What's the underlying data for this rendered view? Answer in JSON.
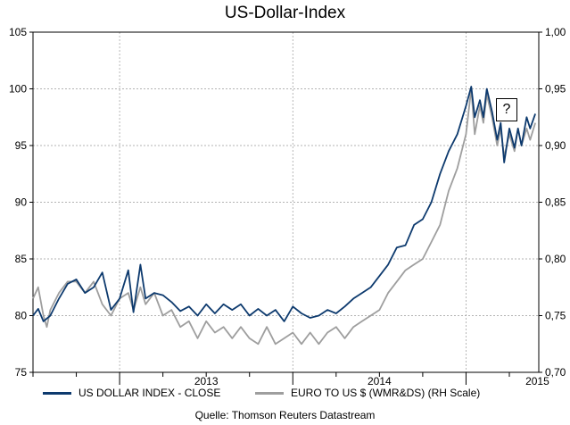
{
  "title": "US-Dollar-Index",
  "source": "Quelle: Thomson Reuters Datastream",
  "annotation": "?",
  "legend": {
    "series1": "US DOLLAR INDEX - CLOSE",
    "series2": "EURO TO US $ (WMR&DS) (RH Scale)"
  },
  "chart_data": {
    "type": "line",
    "title": "US-Dollar-Index",
    "xlim": [
      2012.5,
      2015.42
    ],
    "ylim_left": [
      75,
      105
    ],
    "ylim_right": [
      0.7,
      1.0
    ],
    "yticks_left": [
      "75",
      "80",
      "85",
      "90",
      "95",
      "100",
      "105"
    ],
    "yticks_right": [
      "0,70",
      "0,75",
      "0,80",
      "0,85",
      "0,90",
      "0,95",
      "1,00"
    ],
    "xtick_labels": [
      "2013",
      "2014",
      "2015"
    ],
    "grid": true,
    "legend_position": "bottom",
    "series": [
      {
        "name": "US DOLLAR INDEX - CLOSE",
        "axis": "left",
        "color": "#0d3a6e",
        "points": [
          [
            2012.5,
            80.0
          ],
          [
            2012.53,
            80.6
          ],
          [
            2012.56,
            79.5
          ],
          [
            2012.6,
            80.0
          ],
          [
            2012.65,
            81.5
          ],
          [
            2012.7,
            82.8
          ],
          [
            2012.75,
            83.2
          ],
          [
            2012.8,
            82.0
          ],
          [
            2012.85,
            82.5
          ],
          [
            2012.9,
            83.8
          ],
          [
            2012.95,
            80.5
          ],
          [
            2013.0,
            81.5
          ],
          [
            2013.05,
            84.0
          ],
          [
            2013.08,
            80.3
          ],
          [
            2013.12,
            84.5
          ],
          [
            2013.15,
            81.5
          ],
          [
            2013.2,
            82.0
          ],
          [
            2013.25,
            81.8
          ],
          [
            2013.3,
            81.2
          ],
          [
            2013.35,
            80.4
          ],
          [
            2013.4,
            80.8
          ],
          [
            2013.45,
            80.0
          ],
          [
            2013.5,
            81.0
          ],
          [
            2013.55,
            80.2
          ],
          [
            2013.6,
            81.0
          ],
          [
            2013.65,
            80.5
          ],
          [
            2013.7,
            81.0
          ],
          [
            2013.75,
            80.0
          ],
          [
            2013.8,
            80.6
          ],
          [
            2013.85,
            80.0
          ],
          [
            2013.9,
            80.5
          ],
          [
            2013.95,
            79.5
          ],
          [
            2014.0,
            80.8
          ],
          [
            2014.05,
            80.2
          ],
          [
            2014.1,
            79.8
          ],
          [
            2014.15,
            80.0
          ],
          [
            2014.2,
            80.5
          ],
          [
            2014.25,
            80.2
          ],
          [
            2014.3,
            80.8
          ],
          [
            2014.35,
            81.5
          ],
          [
            2014.4,
            82.0
          ],
          [
            2014.45,
            82.5
          ],
          [
            2014.5,
            83.5
          ],
          [
            2014.55,
            84.5
          ],
          [
            2014.6,
            86.0
          ],
          [
            2014.65,
            86.2
          ],
          [
            2014.7,
            88.0
          ],
          [
            2014.75,
            88.5
          ],
          [
            2014.8,
            90.0
          ],
          [
            2014.85,
            92.5
          ],
          [
            2014.9,
            94.5
          ],
          [
            2014.95,
            96.0
          ],
          [
            2015.0,
            98.5
          ],
          [
            2015.03,
            100.2
          ],
          [
            2015.05,
            97.5
          ],
          [
            2015.08,
            99.0
          ],
          [
            2015.1,
            97.5
          ],
          [
            2015.12,
            100.0
          ],
          [
            2015.15,
            98.0
          ],
          [
            2015.18,
            95.5
          ],
          [
            2015.2,
            97.0
          ],
          [
            2015.22,
            93.5
          ],
          [
            2015.25,
            96.5
          ],
          [
            2015.28,
            94.8
          ],
          [
            2015.3,
            96.5
          ],
          [
            2015.32,
            95.0
          ],
          [
            2015.35,
            97.5
          ],
          [
            2015.37,
            96.5
          ],
          [
            2015.4,
            97.8
          ]
        ]
      },
      {
        "name": "EURO TO US $ (WMR&DS) (RH Scale)",
        "axis": "right",
        "color": "#9e9e9e",
        "points": [
          [
            2012.5,
            0.765
          ],
          [
            2012.53,
            0.775
          ],
          [
            2012.56,
            0.75
          ],
          [
            2012.58,
            0.74
          ],
          [
            2012.6,
            0.755
          ],
          [
            2012.65,
            0.77
          ],
          [
            2012.7,
            0.78
          ],
          [
            2012.75,
            0.78
          ],
          [
            2012.8,
            0.77
          ],
          [
            2012.85,
            0.78
          ],
          [
            2012.9,
            0.76
          ],
          [
            2012.95,
            0.75
          ],
          [
            2013.0,
            0.765
          ],
          [
            2013.05,
            0.77
          ],
          [
            2013.08,
            0.755
          ],
          [
            2013.12,
            0.775
          ],
          [
            2013.15,
            0.76
          ],
          [
            2013.2,
            0.77
          ],
          [
            2013.25,
            0.75
          ],
          [
            2013.3,
            0.755
          ],
          [
            2013.35,
            0.74
          ],
          [
            2013.4,
            0.745
          ],
          [
            2013.45,
            0.73
          ],
          [
            2013.5,
            0.745
          ],
          [
            2013.55,
            0.735
          ],
          [
            2013.6,
            0.74
          ],
          [
            2013.65,
            0.73
          ],
          [
            2013.7,
            0.74
          ],
          [
            2013.75,
            0.73
          ],
          [
            2013.8,
            0.725
          ],
          [
            2013.85,
            0.74
          ],
          [
            2013.9,
            0.725
          ],
          [
            2013.95,
            0.73
          ],
          [
            2014.0,
            0.735
          ],
          [
            2014.05,
            0.725
          ],
          [
            2014.1,
            0.735
          ],
          [
            2014.15,
            0.725
          ],
          [
            2014.2,
            0.735
          ],
          [
            2014.25,
            0.74
          ],
          [
            2014.3,
            0.73
          ],
          [
            2014.35,
            0.74
          ],
          [
            2014.4,
            0.745
          ],
          [
            2014.45,
            0.75
          ],
          [
            2014.5,
            0.755
          ],
          [
            2014.55,
            0.77
          ],
          [
            2014.6,
            0.78
          ],
          [
            2014.65,
            0.79
          ],
          [
            2014.7,
            0.795
          ],
          [
            2014.75,
            0.8
          ],
          [
            2014.8,
            0.815
          ],
          [
            2014.85,
            0.83
          ],
          [
            2014.9,
            0.86
          ],
          [
            2014.95,
            0.88
          ],
          [
            2015.0,
            0.91
          ],
          [
            2015.03,
            0.95
          ],
          [
            2015.05,
            0.91
          ],
          [
            2015.08,
            0.935
          ],
          [
            2015.1,
            0.92
          ],
          [
            2015.12,
            0.945
          ],
          [
            2015.15,
            0.925
          ],
          [
            2015.18,
            0.9
          ],
          [
            2015.2,
            0.915
          ],
          [
            2015.22,
            0.89
          ],
          [
            2015.25,
            0.91
          ],
          [
            2015.28,
            0.895
          ],
          [
            2015.3,
            0.915
          ],
          [
            2015.32,
            0.9
          ],
          [
            2015.35,
            0.915
          ],
          [
            2015.37,
            0.905
          ],
          [
            2015.4,
            0.92
          ]
        ]
      }
    ]
  }
}
